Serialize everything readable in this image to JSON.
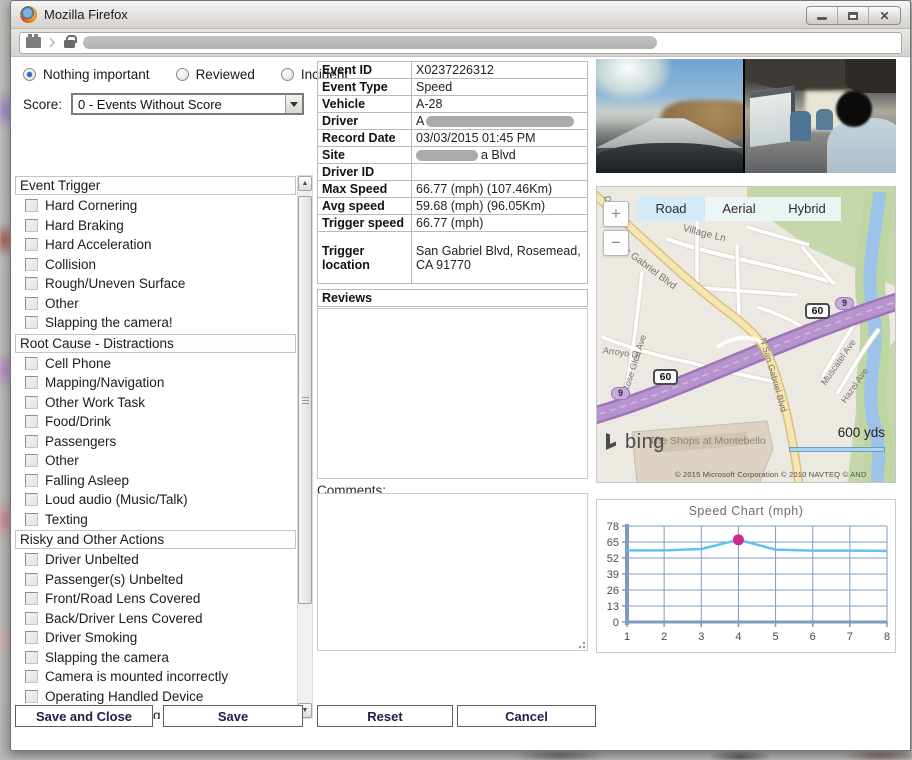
{
  "window": {
    "title": "Mozilla Firefox",
    "controls": {
      "minimize": "minimize",
      "maximize": "maximize",
      "close": "close"
    }
  },
  "review": {
    "status_options": [
      {
        "label": "Nothing important",
        "selected": true
      },
      {
        "label": "Reviewed",
        "selected": false
      },
      {
        "label": "Incident",
        "selected": false
      }
    ],
    "score_label": "Score:",
    "score_value": "0 - Events Without Score"
  },
  "checklist": {
    "sections": [
      {
        "header": "Event Trigger",
        "items": [
          "Hard Cornering",
          "Hard Braking",
          "Hard Acceleration",
          "Collision",
          "Rough/Uneven Surface",
          "Other",
          "Slapping the camera!"
        ]
      },
      {
        "header": "Root Cause - Distractions",
        "items": [
          "Cell Phone",
          "Mapping/Navigation",
          "Other Work Task",
          "Food/Drink",
          "Passengers",
          "Other",
          "Falling Asleep",
          "Loud audio (Music/Talk)",
          "Texting"
        ]
      },
      {
        "header": "Risky and Other Actions",
        "items": [
          "Driver Unbelted",
          "Passenger(s) Unbelted",
          "Front/Road Lens Covered",
          "Back/Driver Lens Covered",
          "Driver Smoking",
          "Slapping the camera",
          "Camera is mounted incorrectly",
          "Operating Handled Device",
          "Tampering/Abusing Equipment"
        ]
      }
    ]
  },
  "details": {
    "rows": [
      {
        "label": "Event ID",
        "value": "X0237226312"
      },
      {
        "label": "Event Type",
        "value": "Speed"
      },
      {
        "label": "Vehicle",
        "value": "A-28"
      },
      {
        "label": "Driver",
        "value": "A",
        "redacted": "suffix"
      },
      {
        "label": "Record Date",
        "value": "03/03/2015 01:45 PM"
      },
      {
        "label": "Site",
        "value": "a Blvd",
        "redacted": "prefix"
      },
      {
        "label": "Driver ID",
        "value": ""
      },
      {
        "label": "Max Speed",
        "value": "66.77 (mph) (107.46Km)"
      },
      {
        "label": "Avg speed",
        "value": "59.68 (mph) (96.05Km)"
      },
      {
        "label": "Trigger speed",
        "value": "66.77 (mph)"
      },
      {
        "label": "Trigger location",
        "value": "San Gabriel Blvd, Rosemead, CA 91770"
      }
    ],
    "reviews_header": "Reviews",
    "comments_label": "Comments:"
  },
  "map": {
    "view_buttons": [
      {
        "label": "Road",
        "selected": true
      },
      {
        "label": "Aerial",
        "selected": false
      },
      {
        "label": "Hybrid",
        "selected": false
      }
    ],
    "labels": [
      "Village Ln",
      "San Gabriel Blvd",
      "Rose Glen Ave",
      "Arroyo Dr",
      "Muscatel Ave",
      "Hazel Ave",
      "N San Gabriel Blvd",
      "The Shops at Montebello",
      "Dr"
    ],
    "shields": [
      "60",
      "9"
    ],
    "scale": "600 yds",
    "copyright": "© 2015 Microsoft Corporation   © 2010 NAVTEQ   © AND",
    "logo": "bing"
  },
  "chart_data": {
    "type": "line",
    "title": "Speed Chart (mph)",
    "x": [
      1,
      2,
      3,
      4,
      5,
      6,
      7,
      8
    ],
    "values": [
      58.2,
      58.2,
      59.3,
      66.77,
      58.8,
      58.0,
      58.0,
      57.8
    ],
    "highlight_index": 3,
    "yticks": [
      0,
      13,
      26,
      39,
      52,
      65,
      78
    ],
    "ylim": [
      0,
      78
    ],
    "xlabel": "",
    "ylabel": "",
    "grid": true,
    "line_color": "#5fc3f2",
    "marker_color": "#c92c8e",
    "grid_color": "#7e9cc0"
  },
  "actions": [
    "Save and Close",
    "Save",
    "Reset",
    "Cancel"
  ]
}
